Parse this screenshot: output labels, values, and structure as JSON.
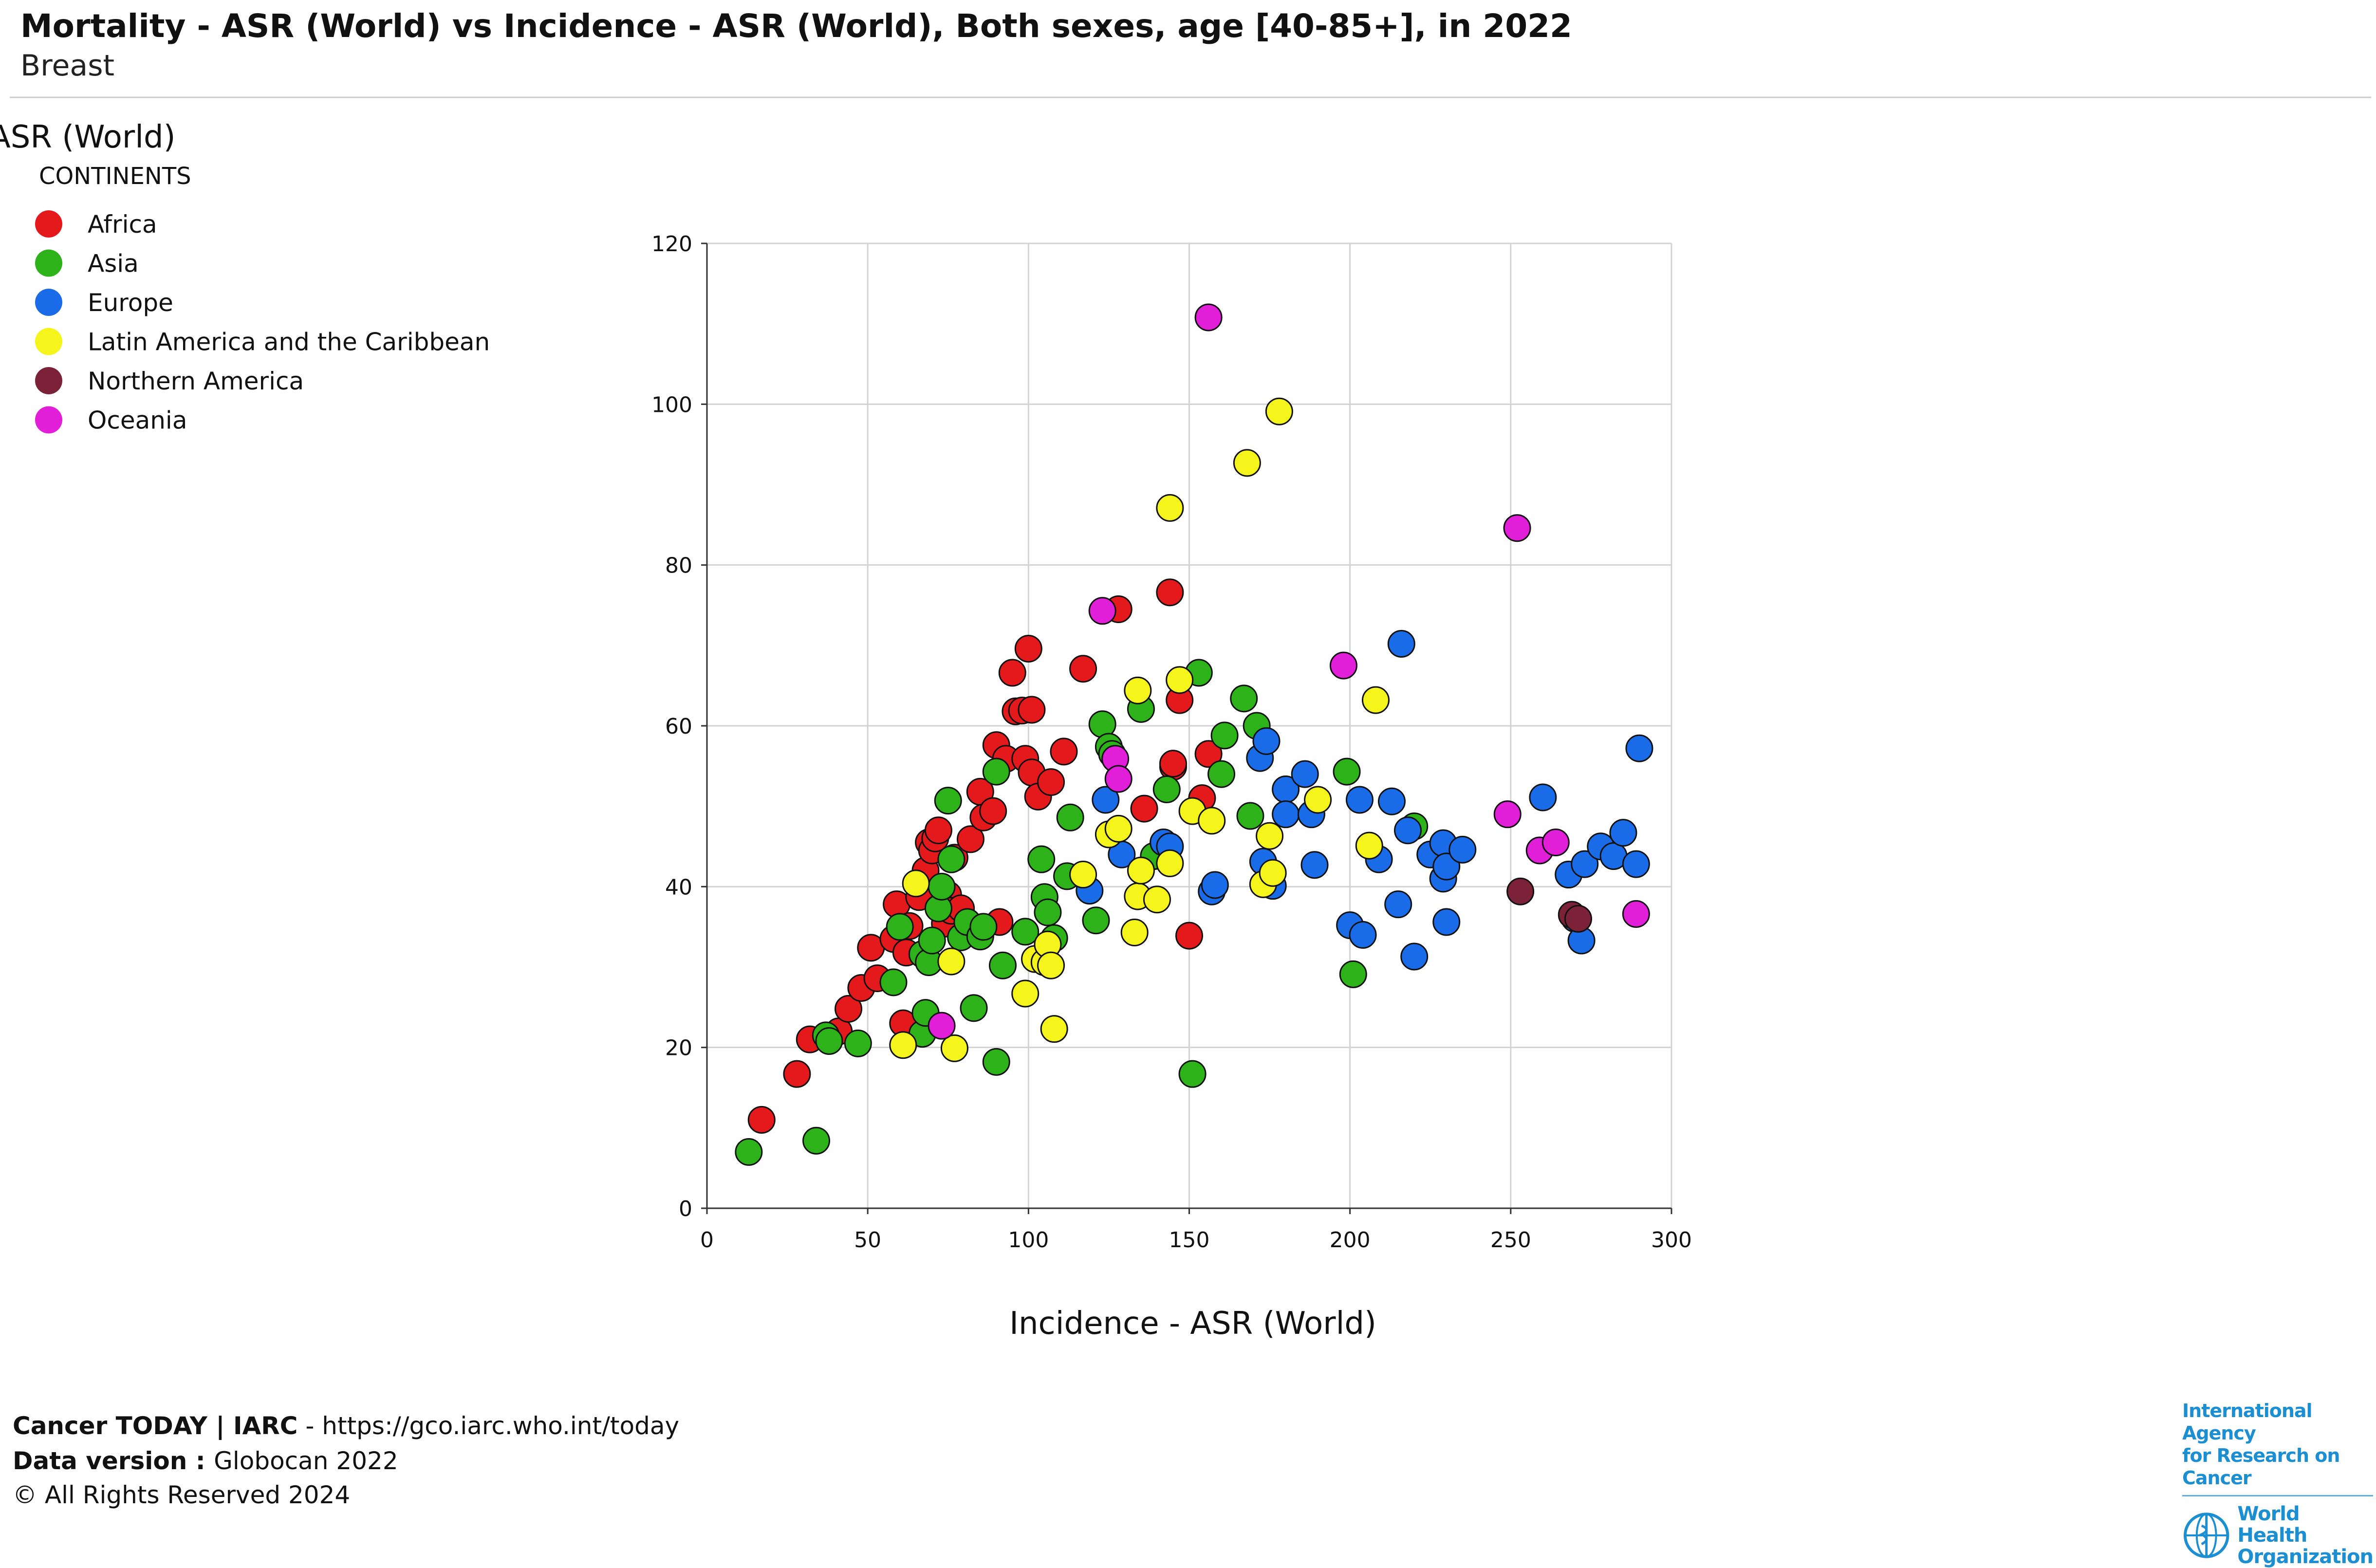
{
  "header": {
    "title": "Mortality - ASR (World) vs Incidence - ASR (World), Both sexes, age [40-85+], in 2022",
    "subtitle": "Breast"
  },
  "colors": {
    "Africa": "#e3191b",
    "Asia": "#2eb21a",
    "Europe": "#1a6be8",
    "Latin America and the Caribbean": "#f5f51c",
    "Northern America": "#7c2238",
    "Oceania": "#e21fd8",
    "grid": "#d3d3d3",
    "divider": "#cccccc"
  },
  "chart_data": {
    "type": "scatter",
    "title": "Mortality - ASR (World) vs Incidence - ASR (World), Both sexes, age [40-85+], in 2022",
    "subtitle": "Breast",
    "xlabel": "Incidence - ASR (World)",
    "ylabel": "ASR (World)",
    "xlim": [
      0,
      300
    ],
    "ylim": [
      0,
      120
    ],
    "xticks": [
      0,
      50,
      100,
      150,
      200,
      250,
      300
    ],
    "yticks": [
      0,
      20,
      40,
      60,
      80,
      100,
      120
    ],
    "grid": true,
    "legend_title": "CONTINENTS",
    "legend_position": "top-left",
    "series": [
      {
        "name": "Africa",
        "points": [
          [
            17,
            11
          ],
          [
            28,
            16.7
          ],
          [
            32,
            21
          ],
          [
            41,
            22
          ],
          [
            44,
            24.8
          ],
          [
            48,
            27.4
          ],
          [
            51,
            32.4
          ],
          [
            53,
            28.6
          ],
          [
            58,
            33.5
          ],
          [
            59,
            37.8
          ],
          [
            61,
            23
          ],
          [
            62,
            31.8
          ],
          [
            63,
            35.1
          ],
          [
            66,
            38.7
          ],
          [
            68,
            42
          ],
          [
            69,
            45.5
          ],
          [
            70,
            44.5
          ],
          [
            71,
            46
          ],
          [
            72,
            47
          ],
          [
            74,
            38.5
          ],
          [
            74,
            35.4
          ],
          [
            75,
            39
          ],
          [
            76,
            37
          ],
          [
            77,
            43.6
          ],
          [
            79,
            37.3
          ],
          [
            82,
            45.9
          ],
          [
            85,
            51.8
          ],
          [
            86,
            48.6
          ],
          [
            89,
            49.4
          ],
          [
            90,
            57.6
          ],
          [
            91,
            35.6
          ],
          [
            93,
            55.9
          ],
          [
            95,
            66.6
          ],
          [
            96,
            61.8
          ],
          [
            98,
            61.9
          ],
          [
            99,
            55.9
          ],
          [
            100,
            69.6
          ],
          [
            101,
            54.2
          ],
          [
            101,
            62
          ],
          [
            103,
            51.2
          ],
          [
            107,
            53
          ],
          [
            111,
            56.8
          ],
          [
            117,
            67.1
          ],
          [
            128,
            74.5
          ],
          [
            136,
            49.7
          ],
          [
            144,
            76.6
          ],
          [
            145,
            54.9
          ],
          [
            145,
            55.3
          ],
          [
            147,
            63.2
          ],
          [
            150,
            33.9
          ],
          [
            154,
            51
          ],
          [
            156,
            56.5
          ]
        ]
      },
      {
        "name": "Asia",
        "points": [
          [
            13,
            7
          ],
          [
            34,
            8.4
          ],
          [
            37,
            21.5
          ],
          [
            38,
            20.8
          ],
          [
            47,
            20.5
          ],
          [
            58,
            28.1
          ],
          [
            60,
            35
          ],
          [
            67,
            21.7
          ],
          [
            67,
            31.6
          ],
          [
            68,
            24.3
          ],
          [
            69,
            30.6
          ],
          [
            70,
            33.3
          ],
          [
            72,
            37.3
          ],
          [
            73,
            40
          ],
          [
            75,
            50.7
          ],
          [
            76,
            43.4
          ],
          [
            79,
            33.7
          ],
          [
            81,
            35.6
          ],
          [
            83,
            24.9
          ],
          [
            85,
            33.8
          ],
          [
            86,
            35
          ],
          [
            90,
            18.2
          ],
          [
            90,
            54.3
          ],
          [
            92,
            30.2
          ],
          [
            99,
            34.4
          ],
          [
            104,
            43.4
          ],
          [
            105,
            38.7
          ],
          [
            106,
            36.8
          ],
          [
            108,
            33.6
          ],
          [
            112,
            41.3
          ],
          [
            113,
            48.6
          ],
          [
            121,
            35.8
          ],
          [
            123,
            60.2
          ],
          [
            125,
            57.4
          ],
          [
            126,
            56.5
          ],
          [
            135,
            62.1
          ],
          [
            139,
            43.8
          ],
          [
            143,
            52.1
          ],
          [
            151,
            16.7
          ],
          [
            153,
            66.6
          ],
          [
            160,
            54
          ],
          [
            161,
            58.8
          ],
          [
            167,
            63.4
          ],
          [
            169,
            48.8
          ],
          [
            171,
            60
          ],
          [
            199,
            54.3
          ],
          [
            201,
            29.1
          ],
          [
            220,
            47.5
          ]
        ]
      },
      {
        "name": "Europe",
        "points": [
          [
            119,
            39.5
          ],
          [
            124,
            50.8
          ],
          [
            129,
            44
          ],
          [
            142,
            45.5
          ],
          [
            144,
            45
          ],
          [
            157,
            39.4
          ],
          [
            158,
            40.2
          ],
          [
            172,
            56
          ],
          [
            173,
            43.1
          ],
          [
            174,
            58.1
          ],
          [
            176,
            40.1
          ],
          [
            180,
            52.1
          ],
          [
            180,
            49
          ],
          [
            186,
            54
          ],
          [
            188,
            49
          ],
          [
            189,
            42.7
          ],
          [
            200,
            35.2
          ],
          [
            203,
            50.8
          ],
          [
            204,
            34
          ],
          [
            209,
            43.4
          ],
          [
            213,
            50.6
          ],
          [
            215,
            37.8
          ],
          [
            216,
            70.2
          ],
          [
            218,
            47
          ],
          [
            220,
            31.3
          ],
          [
            225,
            44
          ],
          [
            229,
            41
          ],
          [
            229,
            45.4
          ],
          [
            230,
            35.6
          ],
          [
            230,
            42.5
          ],
          [
            235,
            44.6
          ],
          [
            260,
            51.1
          ],
          [
            268,
            41.5
          ],
          [
            270,
            36
          ],
          [
            272,
            33.3
          ],
          [
            273,
            42.8
          ],
          [
            278,
            45
          ],
          [
            282,
            43.8
          ],
          [
            285,
            46.7
          ],
          [
            289,
            42.8
          ],
          [
            290,
            57.2
          ]
        ]
      },
      {
        "name": "Latin America and the Caribbean",
        "points": [
          [
            61,
            20.3
          ],
          [
            65,
            40.4
          ],
          [
            76,
            30.7
          ],
          [
            77,
            19.9
          ],
          [
            99,
            26.7
          ],
          [
            102,
            31
          ],
          [
            105,
            30.6
          ],
          [
            106,
            32.8
          ],
          [
            107,
            30.2
          ],
          [
            108,
            22.3
          ],
          [
            117,
            41.5
          ],
          [
            125,
            46.5
          ],
          [
            128,
            47.2
          ],
          [
            133,
            34.3
          ],
          [
            134,
            64.4
          ],
          [
            134,
            38.8
          ],
          [
            135,
            42
          ],
          [
            140,
            38.4
          ],
          [
            144,
            42.9
          ],
          [
            144,
            87.1
          ],
          [
            147,
            65.7
          ],
          [
            151,
            49.4
          ],
          [
            157,
            48.2
          ],
          [
            168,
            92.7
          ],
          [
            173,
            40.3
          ],
          [
            175,
            46.3
          ],
          [
            176,
            41.7
          ],
          [
            178,
            99.1
          ],
          [
            190,
            50.8
          ],
          [
            206,
            45.1
          ],
          [
            208,
            63.2
          ]
        ]
      },
      {
        "name": "Northern America",
        "points": [
          [
            253,
            39.4
          ],
          [
            269,
            36.5
          ],
          [
            271,
            36
          ]
        ]
      },
      {
        "name": "Oceania",
        "points": [
          [
            73,
            22.7
          ],
          [
            123,
            74.3
          ],
          [
            127,
            55.9
          ],
          [
            128,
            53.4
          ],
          [
            156,
            110.8
          ],
          [
            198,
            67.5
          ],
          [
            249,
            49
          ],
          [
            252,
            84.6
          ],
          [
            259,
            44.5
          ],
          [
            264,
            45.5
          ],
          [
            289,
            36.6
          ]
        ]
      }
    ]
  },
  "footer": {
    "brand": "Cancer TODAY | IARC",
    "url_text": " - https://gco.iarc.who.int/today",
    "version_label": "Data version : ",
    "version_value": "Globocan 2022",
    "rights": "© All Rights Reserved 2024"
  },
  "logos": {
    "iarc_line1": "International Agency",
    "iarc_line2": "for Research on Cancer",
    "who_line1": "World Health",
    "who_line2": "Organization"
  }
}
